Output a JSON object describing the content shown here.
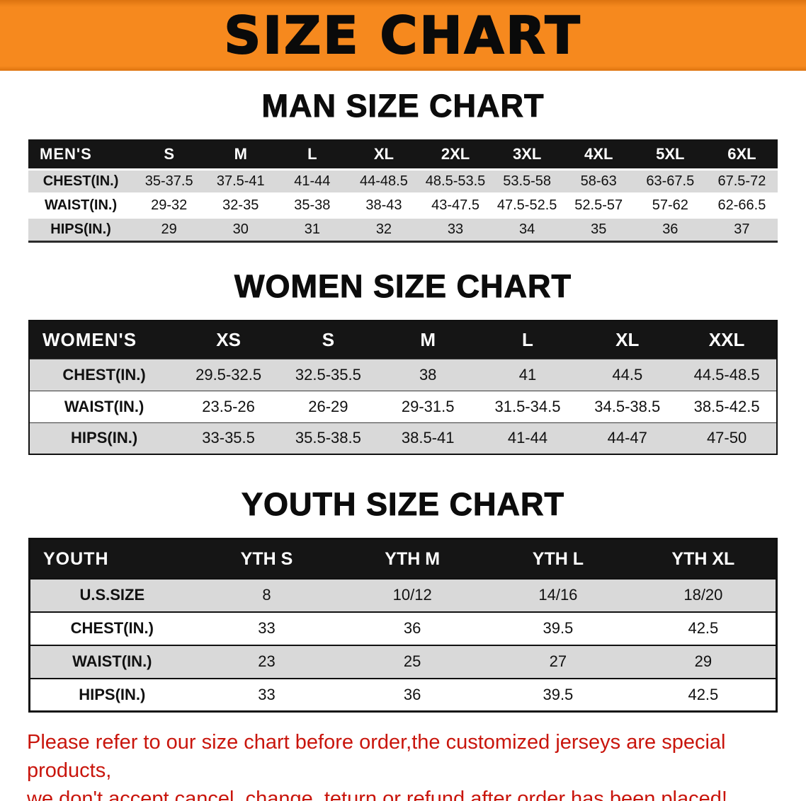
{
  "banner": {
    "title": "SIZE CHART"
  },
  "colors": {
    "banner-bg": "#f6891e",
    "banner-edge": "#dd7410",
    "header-bg": "#151515",
    "row-shade": "#d9d9d9",
    "footer-red": "#c9150c"
  },
  "sections": [
    {
      "heading": "MAN SIZE CHART",
      "table": {
        "header": [
          "MEN'S",
          "S",
          "M",
          "L",
          "XL",
          "2XL",
          "3XL",
          "4XL",
          "5XL",
          "6XL"
        ],
        "rows": [
          {
            "label": "CHEST(IN.)",
            "values": [
              "35-37.5",
              "37.5-41",
              "41-44",
              "44-48.5",
              "48.5-53.5",
              "53.5-58",
              "58-63",
              "63-67.5",
              "67.5-72"
            ]
          },
          {
            "label": "WAIST(IN.)",
            "values": [
              "29-32",
              "32-35",
              "35-38",
              "38-43",
              "43-47.5",
              "47.5-52.5",
              "52.5-57",
              "57-62",
              "62-66.5"
            ]
          },
          {
            "label": "HIPS(IN.)",
            "values": [
              "29",
              "30",
              "31",
              "32",
              "33",
              "34",
              "35",
              "36",
              "37"
            ]
          }
        ]
      }
    },
    {
      "heading": "WOMEN SIZE CHART",
      "table": {
        "header": [
          "WOMEN'S",
          "XS",
          "S",
          "M",
          "L",
          "XL",
          "XXL"
        ],
        "rows": [
          {
            "label": "CHEST(IN.)",
            "values": [
              "29.5-32.5",
              "32.5-35.5",
              "38",
              "41",
              "44.5",
              "44.5-48.5"
            ]
          },
          {
            "label": "WAIST(IN.)",
            "values": [
              "23.5-26",
              "26-29",
              "29-31.5",
              "31.5-34.5",
              "34.5-38.5",
              "38.5-42.5"
            ]
          },
          {
            "label": "HIPS(IN.)",
            "values": [
              "33-35.5",
              "35.5-38.5",
              "38.5-41",
              "41-44",
              "44-47",
              "47-50"
            ]
          }
        ]
      }
    },
    {
      "heading": "YOUTH SIZE CHART",
      "table": {
        "header": [
          "YOUTH",
          "YTH S",
          "YTH M",
          "YTH L",
          "YTH XL"
        ],
        "rows": [
          {
            "label": "U.S.SIZE",
            "values": [
              "8",
              "10/12",
              "14/16",
              "18/20"
            ]
          },
          {
            "label": "CHEST(IN.)",
            "values": [
              "33",
              "36",
              "39.5",
              "42.5"
            ]
          },
          {
            "label": "WAIST(IN.)",
            "values": [
              "23",
              "25",
              "27",
              "29"
            ]
          },
          {
            "label": "HIPS(IN.)",
            "values": [
              "33",
              "36",
              "39.5",
              "42.5"
            ]
          }
        ]
      }
    }
  ],
  "footer": {
    "line1": "Please refer to our size chart before order,the customized jerseys are special products,",
    "line2": "we don't accept cancel, change, teturn or refund after order has been placed!"
  }
}
